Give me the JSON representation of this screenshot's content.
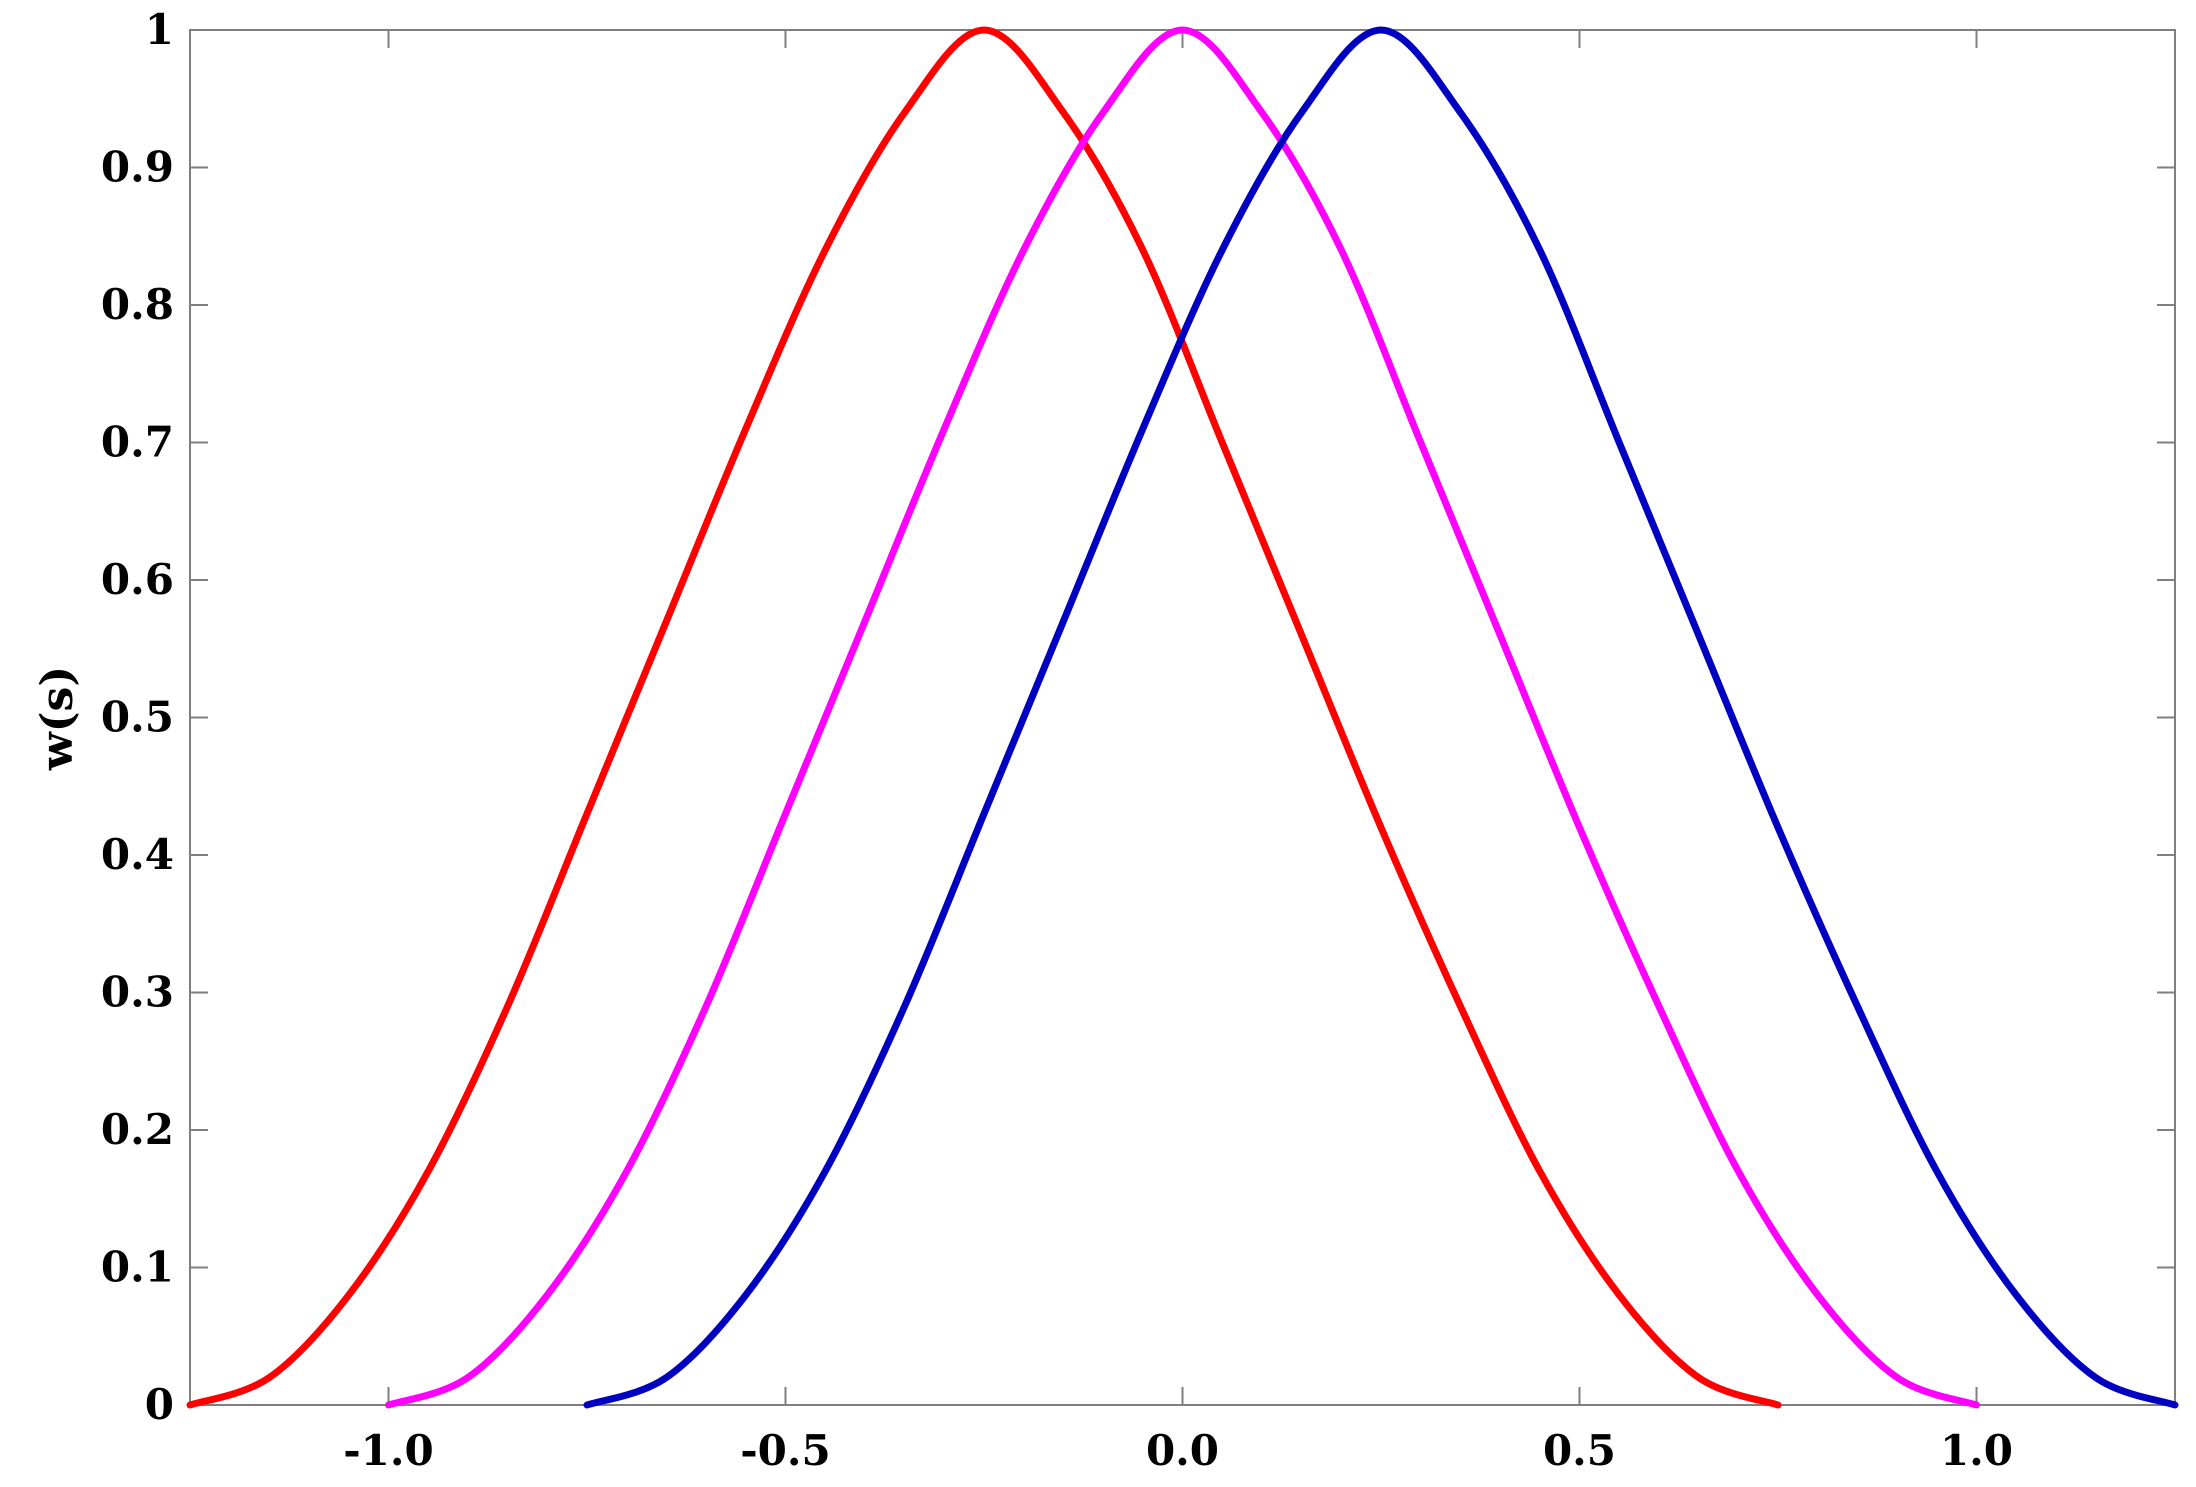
{
  "chart_data": {
    "type": "line",
    "title": "",
    "xlabel": "",
    "ylabel": "w(s)",
    "xlim": [
      -1.25,
      1.25
    ],
    "ylim": [
      0,
      1
    ],
    "xticks": [
      "-1.0",
      "-0.5",
      "0.0",
      "0.5",
      "1.0"
    ],
    "yticks": [
      "0",
      "0.1",
      "0.2",
      "0.3",
      "0.4",
      "0.5",
      "0.6",
      "0.7",
      "0.8",
      "0.9",
      "1"
    ],
    "grid": false,
    "legend": "none",
    "series": [
      {
        "color": "#ff0000",
        "x": [
          -1.25,
          -1.15,
          -1.05,
          -0.95,
          -0.85,
          -0.75,
          -0.65,
          -0.55,
          -0.45,
          -0.35,
          -0.25,
          -0.15,
          -0.05,
          0.05,
          0.15,
          0.25,
          0.35,
          0.45,
          0.55,
          0.65,
          0.75
        ],
        "y": [
          0,
          0.02,
          0.08,
          0.17,
          0.29,
          0.43,
          0.57,
          0.71,
          0.84,
          0.94,
          1.0,
          0.94,
          0.84,
          0.7,
          0.56,
          0.42,
          0.29,
          0.17,
          0.08,
          0.02,
          0
        ]
      },
      {
        "color": "#ff00ff",
        "x": [
          -1.0,
          -0.9,
          -0.8,
          -0.7,
          -0.6,
          -0.5,
          -0.4,
          -0.3,
          -0.2,
          -0.1,
          0.0,
          0.1,
          0.2,
          0.3,
          0.4,
          0.5,
          0.6,
          0.7,
          0.8,
          0.9,
          1.0
        ],
        "y": [
          0,
          0.02,
          0.08,
          0.17,
          0.29,
          0.43,
          0.57,
          0.71,
          0.84,
          0.94,
          1.0,
          0.94,
          0.84,
          0.7,
          0.56,
          0.42,
          0.29,
          0.17,
          0.08,
          0.02,
          0
        ]
      },
      {
        "color": "#0000c0",
        "x": [
          -0.75,
          -0.65,
          -0.55,
          -0.45,
          -0.35,
          -0.25,
          -0.15,
          -0.05,
          0.05,
          0.15,
          0.25,
          0.35,
          0.45,
          0.55,
          0.65,
          0.75,
          0.85,
          0.95,
          1.05,
          1.15,
          1.25
        ],
        "y": [
          0,
          0.02,
          0.08,
          0.17,
          0.29,
          0.43,
          0.57,
          0.71,
          0.84,
          0.94,
          1.0,
          0.94,
          0.84,
          0.7,
          0.56,
          0.42,
          0.29,
          0.17,
          0.08,
          0.02,
          0
        ]
      }
    ]
  }
}
